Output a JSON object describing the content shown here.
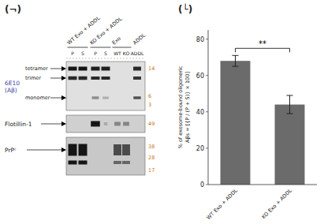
{
  "chart_data": [
    {
      "type": "blot",
      "title": "(¬)",
      "categories": [
        "P",
        "S",
        "P",
        "S",
        "WT",
        "KO",
        "ADDL"
      ],
      "annotations": [
        "WT Exo + ADDL",
        "KO Exo + ADDL",
        "Exo",
        "ADDL",
        "6E10\n(Aβ)",
        "tetramer",
        "trimer",
        "monomer",
        "Flotillin-1",
        "PrPᶜ",
        "14",
        "6",
        "3",
        "49",
        "38",
        "28",
        "17"
      ]
    },
    {
      "type": "bar",
      "title": "(└)",
      "categories": [
        "WT Exo + ADDL",
        "KO Exo + ADDL"
      ],
      "values": [
        68,
        44
      ],
      "errors": [
        3,
        5
      ],
      "color": "#6b6b6b",
      "ylabel": "% of exosome-bound oligomeric\nAβs = [{P / (P + S)} × 100]",
      "ylim": [
        0,
        85
      ],
      "yticks": [
        0,
        20,
        40,
        60,
        80
      ],
      "annotations": [
        "**"
      ]
    }
  ]
}
